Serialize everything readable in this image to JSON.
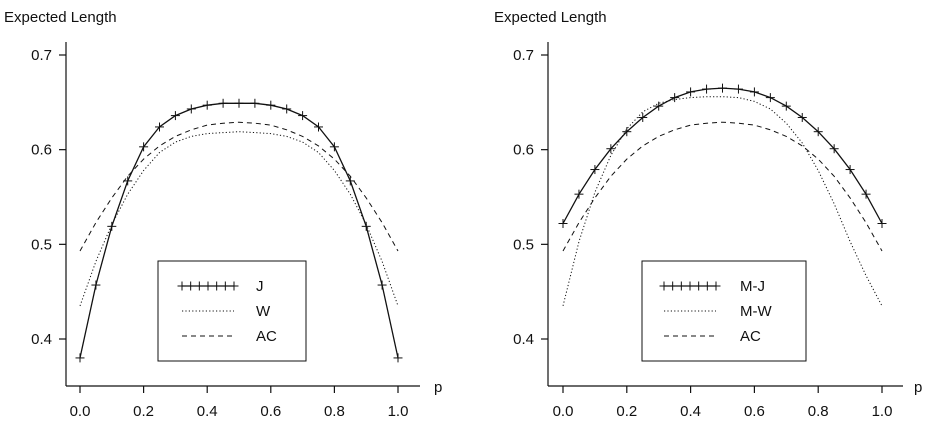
{
  "chart_data": [
    {
      "type": "line",
      "title": "",
      "ylabel": "Expected Length",
      "xlabel": "p",
      "xlim": [
        0.0,
        1.0
      ],
      "ylim": [
        0.35,
        0.72
      ],
      "xticks": [
        "0.0",
        "0.2",
        "0.4",
        "0.6",
        "0.8",
        "1.0"
      ],
      "yticks": [
        "0.4",
        "0.5",
        "0.6",
        "0.7"
      ],
      "legend_position": "bottom-center",
      "grid": false,
      "x": [
        0.0,
        0.05,
        0.1,
        0.15,
        0.2,
        0.25,
        0.3,
        0.35,
        0.4,
        0.45,
        0.5,
        0.55,
        0.6,
        0.65,
        0.7,
        0.75,
        0.8,
        0.85,
        0.9,
        0.95,
        1.0
      ],
      "series": [
        {
          "name": "J",
          "style": "solid-plus",
          "values": [
            0.38,
            0.457,
            0.519,
            0.567,
            0.603,
            0.624,
            0.636,
            0.643,
            0.647,
            0.649,
            0.649,
            0.649,
            0.647,
            0.643,
            0.636,
            0.624,
            0.603,
            0.567,
            0.519,
            0.457,
            0.38
          ]
        },
        {
          "name": "W",
          "style": "dotted",
          "values": [
            0.435,
            0.482,
            0.521,
            0.553,
            0.578,
            0.597,
            0.608,
            0.614,
            0.617,
            0.618,
            0.619,
            0.618,
            0.617,
            0.614,
            0.608,
            0.597,
            0.578,
            0.553,
            0.521,
            0.482,
            0.435
          ]
        },
        {
          "name": "AC",
          "style": "dashed",
          "values": [
            0.493,
            0.523,
            0.549,
            0.572,
            0.59,
            0.604,
            0.614,
            0.621,
            0.626,
            0.628,
            0.629,
            0.628,
            0.626,
            0.621,
            0.614,
            0.604,
            0.59,
            0.572,
            0.549,
            0.523,
            0.493
          ]
        }
      ]
    },
    {
      "type": "line",
      "title": "",
      "ylabel": "Expected Length",
      "xlabel": "p",
      "xlim": [
        0.0,
        1.0
      ],
      "ylim": [
        0.35,
        0.72
      ],
      "xticks": [
        "0.0",
        "0.2",
        "0.4",
        "0.6",
        "0.8",
        "1.0"
      ],
      "yticks": [
        "0.4",
        "0.5",
        "0.6",
        "0.7"
      ],
      "legend_position": "bottom-center",
      "grid": false,
      "x": [
        0.0,
        0.05,
        0.1,
        0.15,
        0.2,
        0.25,
        0.3,
        0.35,
        0.4,
        0.45,
        0.5,
        0.55,
        0.6,
        0.65,
        0.7,
        0.75,
        0.8,
        0.85,
        0.9,
        0.95,
        1.0
      ],
      "series": [
        {
          "name": "M-J",
          "style": "solid-plus",
          "values": [
            0.522,
            0.553,
            0.579,
            0.601,
            0.619,
            0.634,
            0.646,
            0.655,
            0.661,
            0.664,
            0.665,
            0.664,
            0.661,
            0.655,
            0.646,
            0.634,
            0.619,
            0.601,
            0.579,
            0.553,
            0.522
          ]
        },
        {
          "name": "M-W",
          "style": "dotted",
          "values": [
            0.435,
            0.503,
            0.555,
            0.594,
            0.622,
            0.64,
            0.649,
            0.653,
            0.655,
            0.656,
            0.656,
            0.655,
            0.651,
            0.643,
            0.628,
            0.607,
            0.578,
            0.543,
            0.503,
            0.467,
            0.435
          ]
        },
        {
          "name": "AC",
          "style": "dashed",
          "values": [
            0.493,
            0.523,
            0.549,
            0.572,
            0.59,
            0.604,
            0.614,
            0.621,
            0.626,
            0.628,
            0.629,
            0.628,
            0.626,
            0.621,
            0.614,
            0.604,
            0.59,
            0.572,
            0.549,
            0.523,
            0.493
          ]
        }
      ]
    }
  ]
}
